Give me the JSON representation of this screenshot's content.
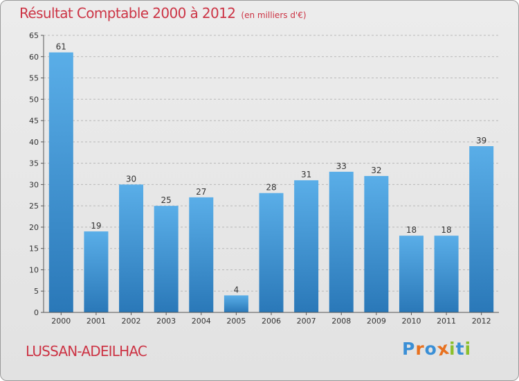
{
  "title": "Résultat Comptable 2000 à 2012",
  "subtitle": "(en milliers d'€)",
  "commune": "LUSSAN-ADEILHAC",
  "logo": {
    "text": "Proxiti",
    "letter_colors": [
      "#3a8fd6",
      "#e8711f",
      "#3a8fd6",
      "#e8711f",
      "#8bbf2c",
      "#3a8fd6",
      "#8bbf2c"
    ]
  },
  "colors": {
    "title": "#cc3344",
    "bar_top": "#5aaee8",
    "bar_bottom": "#2a78b8",
    "grid": "#b8b8b8"
  },
  "chart_data": {
    "type": "bar",
    "categories": [
      "2000",
      "2001",
      "2002",
      "2003",
      "2004",
      "2005",
      "2006",
      "2007",
      "2008",
      "2009",
      "2010",
      "2011",
      "2012"
    ],
    "values": [
      61,
      19,
      30,
      25,
      27,
      4,
      28,
      31,
      33,
      32,
      18,
      18,
      39
    ],
    "ylim": [
      0,
      65
    ],
    "yticks": [
      0,
      5,
      10,
      15,
      20,
      25,
      30,
      35,
      40,
      45,
      50,
      55,
      60,
      65
    ],
    "grid": true,
    "data_labels": true
  }
}
